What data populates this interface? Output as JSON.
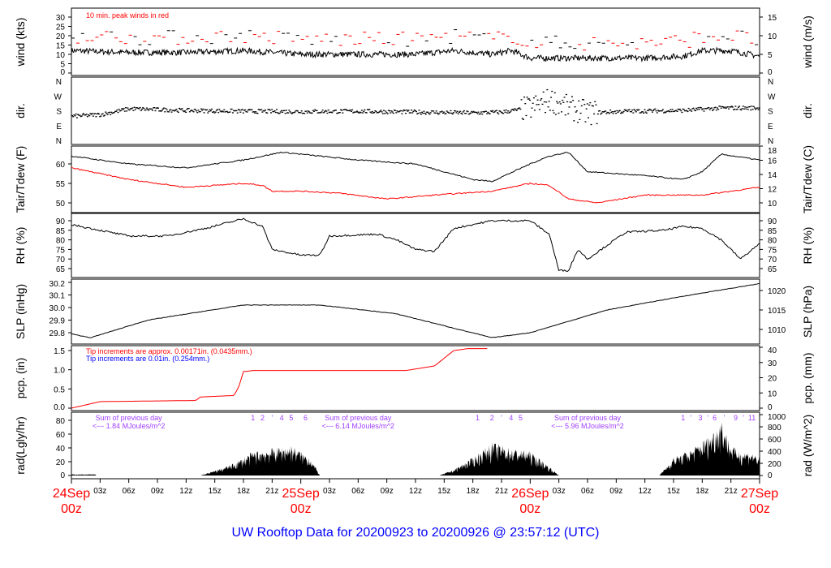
{
  "title": "UW Rooftop Data for 20200923  to  20200926 @ 23:57:12  (UTC)",
  "colors": {
    "title": "#0000ff",
    "date": "#ff0000",
    "peak": "#ff0000",
    "dew": "#ff0000",
    "tip1": "#ff0000",
    "tip2": "#0000ff",
    "sum": "#a040ff"
  },
  "chart_data": [
    {
      "type": "line",
      "ylabel": "wind (kts)",
      "ylabel_right": "wind (m/s)",
      "ylim": [
        0,
        32
      ],
      "yticks": [
        0,
        5,
        10,
        15,
        20,
        25,
        30
      ],
      "yticks_right": [
        0,
        5,
        10,
        15
      ],
      "annotation": "10 min. peak winds in red",
      "series": [
        {
          "name": "wind",
          "points": [
            [
              0,
              12
            ],
            [
              6,
              11
            ],
            [
              12,
              11
            ],
            [
              18,
              12
            ],
            [
              24,
              10
            ],
            [
              30,
              10
            ],
            [
              36,
              10
            ],
            [
              40,
              12
            ],
            [
              44,
              10
            ],
            [
              46,
              12
            ],
            [
              48,
              8
            ],
            [
              54,
              8
            ],
            [
              60,
              8
            ],
            [
              64,
              9
            ],
            [
              66,
              12
            ],
            [
              69,
              12
            ],
            [
              72,
              9
            ]
          ]
        }
      ]
    },
    {
      "type": "scatter",
      "ylabel": "dir.",
      "ylabel_right": "dir.",
      "yticks": [
        "N",
        "W",
        "S",
        "E",
        "N"
      ],
      "series": [
        {
          "name": "direction (deg)",
          "points": [
            [
              0,
              150
            ],
            [
              3,
              160
            ],
            [
              6,
              195
            ],
            [
              12,
              185
            ],
            [
              18,
              180
            ],
            [
              24,
              178
            ],
            [
              30,
              180
            ],
            [
              36,
              175
            ],
            [
              42,
              170
            ],
            [
              45,
              175
            ],
            [
              48,
              200
            ],
            [
              50,
              250
            ],
            [
              52,
              200
            ],
            [
              54,
              170
            ],
            [
              58,
              180
            ],
            [
              64,
              185
            ],
            [
              68,
              200
            ],
            [
              72,
              200
            ]
          ]
        }
      ]
    },
    {
      "type": "line",
      "ylabel": "Tair/Tdew (F)",
      "ylabel_right": "Tair/Tdew (C)",
      "ylim": [
        48.5,
        63.5
      ],
      "yticks": [
        50,
        55,
        60
      ],
      "yticks_right": [
        10,
        12,
        14,
        16,
        18
      ],
      "series": [
        {
          "name": "Tair",
          "points": [
            [
              0,
              62
            ],
            [
              6,
              60
            ],
            [
              12,
              59
            ],
            [
              18,
              61
            ],
            [
              22,
              63
            ],
            [
              24,
              62.5
            ],
            [
              30,
              61
            ],
            [
              36,
              60
            ],
            [
              42,
              56
            ],
            [
              44,
              55.5
            ],
            [
              48,
              60
            ],
            [
              50,
              62
            ],
            [
              52,
              63
            ],
            [
              54,
              58
            ],
            [
              60,
              57
            ],
            [
              64,
              56
            ],
            [
              66,
              58
            ],
            [
              68,
              62.5
            ],
            [
              72,
              61
            ]
          ]
        },
        {
          "name": "Tdew",
          "points": [
            [
              0,
              59
            ],
            [
              6,
              56
            ],
            [
              12,
              54
            ],
            [
              18,
              55
            ],
            [
              20,
              54.5
            ],
            [
              21,
              53
            ],
            [
              24,
              53
            ],
            [
              28,
              52.5
            ],
            [
              33,
              51
            ],
            [
              38,
              52
            ],
            [
              44,
              53
            ],
            [
              48,
              55
            ],
            [
              50,
              54.5
            ],
            [
              52,
              51
            ],
            [
              55,
              50
            ],
            [
              60,
              52
            ],
            [
              66,
              52
            ],
            [
              72,
              54
            ]
          ]
        }
      ]
    },
    {
      "type": "line",
      "ylabel": "RH (%)",
      "ylabel_right": "RH (%)",
      "ylim": [
        62,
        93
      ],
      "yticks": [
        65,
        70,
        75,
        80,
        85,
        90
      ],
      "series": [
        {
          "name": "RH",
          "points": [
            [
              0,
              88
            ],
            [
              6,
              82
            ],
            [
              10,
              82
            ],
            [
              14,
              86
            ],
            [
              18,
              91
            ],
            [
              20,
              87
            ],
            [
              21,
              75
            ],
            [
              24,
              72
            ],
            [
              26,
              72
            ],
            [
              27,
              82
            ],
            [
              32,
              83
            ],
            [
              34,
              80
            ],
            [
              36,
              75
            ],
            [
              38,
              74
            ],
            [
              40,
              86
            ],
            [
              44,
              90
            ],
            [
              48,
              90
            ],
            [
              50,
              83
            ],
            [
              51,
              64
            ],
            [
              52,
              64
            ],
            [
              53,
              75
            ],
            [
              54,
              70
            ],
            [
              58,
              84
            ],
            [
              62,
              85
            ],
            [
              64,
              87
            ],
            [
              66,
              86
            ],
            [
              68,
              80
            ],
            [
              70,
              70
            ],
            [
              72,
              78
            ]
          ]
        }
      ]
    },
    {
      "type": "line",
      "ylabel": "SLP (inHg)",
      "ylabel_right": "SLP (hPa)",
      "ylim": [
        29.7,
        30.23
      ],
      "yticks": [
        29.8,
        29.9,
        30.0,
        30.1,
        30.2
      ],
      "yticks_right": [
        1010,
        1015,
        1020
      ],
      "series": [
        {
          "name": "SLP",
          "points": [
            [
              0,
              29.79
            ],
            [
              2,
              29.76
            ],
            [
              8,
              29.9
            ],
            [
              18,
              30.02
            ],
            [
              26,
              30.02
            ],
            [
              34,
              29.95
            ],
            [
              44,
              29.76
            ],
            [
              48,
              29.8
            ],
            [
              56,
              29.98
            ],
            [
              64,
              30.09
            ],
            [
              72,
              30.19
            ]
          ]
        }
      ]
    },
    {
      "type": "line",
      "ylabel": "pcp. (in)",
      "ylabel_right": "pcp. (mm)",
      "ylim": [
        0,
        1.55
      ],
      "yticks": [
        0.0,
        0.5,
        1.0,
        1.5
      ],
      "yticks_right": [
        0,
        10,
        20,
        30,
        40
      ],
      "notes": [
        "Tip increments are approx. 0.00171in. (0.0435mm.)",
        "Tip increments are 0.01in. (0.254mm.)"
      ],
      "series": [
        {
          "name": "precip",
          "points": [
            [
              0,
              0
            ],
            [
              3,
              0.17
            ],
            [
              13,
              0.2
            ],
            [
              13.5,
              0.29
            ],
            [
              17,
              0.33
            ],
            [
              17.5,
              0.55
            ],
            [
              18,
              0.95
            ],
            [
              19,
              0.98
            ],
            [
              35,
              0.98
            ],
            [
              38,
              1.1
            ],
            [
              40,
              1.5
            ],
            [
              41.5,
              1.55
            ],
            [
              43.5,
              1.55
            ]
          ]
        }
      ]
    },
    {
      "type": "area",
      "ylabel": "rad(Lgly/hr)",
      "ylabel_right": "rad (W/m^2)",
      "ylim": [
        0,
        1000
      ],
      "yticks": [
        0,
        20,
        40,
        60,
        80
      ],
      "yticks_right": [
        0,
        200,
        400,
        600,
        800,
        1000
      ],
      "day_sums": [
        {
          "label": "Sum of previous day",
          "value": "<--- 1.84 MJoules/m^2",
          "hour": 6
        },
        {
          "label": "Sum of previous day",
          "value": "<--- 6.14 MJoules/m^2",
          "hour": 30
        },
        {
          "label": "Sum of previous day",
          "value": "<--- 5.96 MJoules/m^2",
          "hour": 54
        }
      ],
      "marks": [
        {
          "t": "1",
          "h": 19
        },
        {
          "t": "2",
          "h": 20
        },
        {
          "t": "'",
          "h": 21
        },
        {
          "t": "4",
          "h": 22
        },
        {
          "t": "5",
          "h": 23
        },
        {
          "t": "6",
          "h": 24.5
        },
        {
          "t": "1",
          "h": 42.5
        },
        {
          "t": "2",
          "h": 44
        },
        {
          "t": "'",
          "h": 45
        },
        {
          "t": "4",
          "h": 46
        },
        {
          "t": "5",
          "h": 47
        },
        {
          "t": "1",
          "h": 64
        },
        {
          "t": "'",
          "h": 64.8
        },
        {
          "t": "3",
          "h": 65.8
        },
        {
          "t": "'",
          "h": 66.6
        },
        {
          "t": "6",
          "h": 67.3
        },
        {
          "t": "'",
          "h": 68.3
        },
        {
          "t": "9",
          "h": 69.5
        },
        {
          "t": "'",
          "h": 70.3
        },
        {
          "t": "11",
          "h": 71.2
        }
      ],
      "series": [
        {
          "name": "radiation",
          "points": [
            [
              0,
              20
            ],
            [
              2.5,
              20
            ],
            [
              2.6,
              0
            ],
            [
              13.5,
              0
            ],
            [
              15,
              80
            ],
            [
              17,
              200
            ],
            [
              19,
              400
            ],
            [
              21,
              450
            ],
            [
              23,
              500
            ],
            [
              25,
              300
            ],
            [
              26,
              0
            ],
            [
              38.5,
              0
            ],
            [
              40,
              100
            ],
            [
              42,
              300
            ],
            [
              44,
              550
            ],
            [
              46,
              450
            ],
            [
              48,
              400
            ],
            [
              50,
              150
            ],
            [
              51,
              0
            ],
            [
              61.5,
              0
            ],
            [
              63,
              300
            ],
            [
              65,
              450
            ],
            [
              67,
              700
            ],
            [
              68,
              950
            ],
            [
              69,
              500
            ],
            [
              70,
              400
            ],
            [
              71,
              400
            ],
            [
              72,
              300
            ]
          ]
        }
      ]
    }
  ],
  "x_axis": {
    "hour_ticks": [
      "03z",
      "06z",
      "09z",
      "12z",
      "15z",
      "18z",
      "21z"
    ],
    "dates": [
      {
        "day": "24Sep",
        "time": "00z"
      },
      {
        "day": "25Sep",
        "time": "00z"
      },
      {
        "day": "26Sep",
        "time": "00z"
      },
      {
        "day": "27Sep",
        "time": "00z"
      }
    ]
  }
}
